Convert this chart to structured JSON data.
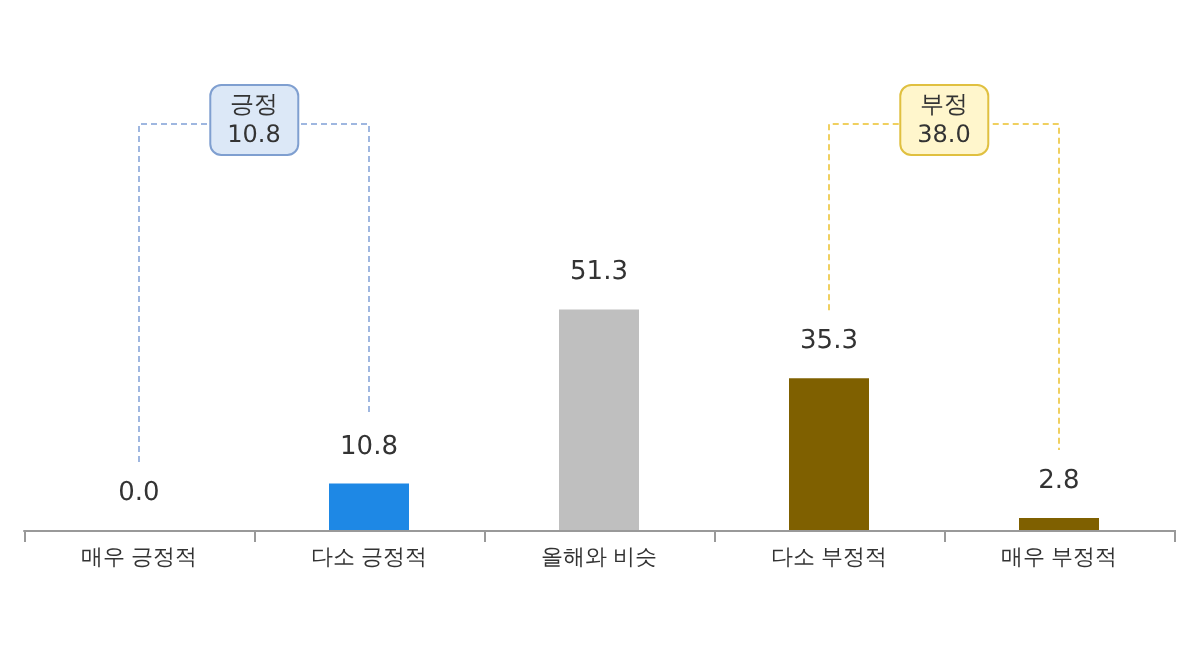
{
  "chart_data": {
    "type": "bar",
    "categories": [
      "매우 긍정적",
      "다소 긍정적",
      "올해와 비슷",
      "다소 부정적",
      "매우 부정적"
    ],
    "values": [
      0.0,
      10.8,
      51.3,
      35.3,
      2.8
    ],
    "colors": [
      "#1e88e5",
      "#1e88e5",
      "#bfbfbf",
      "#7f6000",
      "#7f6000"
    ],
    "value_labels": [
      "0.0",
      "10.8",
      "51.3",
      "35.3",
      "2.8"
    ],
    "annotations": [
      "긍정\n10.8",
      "부정\n38.0"
    ]
  }
}
